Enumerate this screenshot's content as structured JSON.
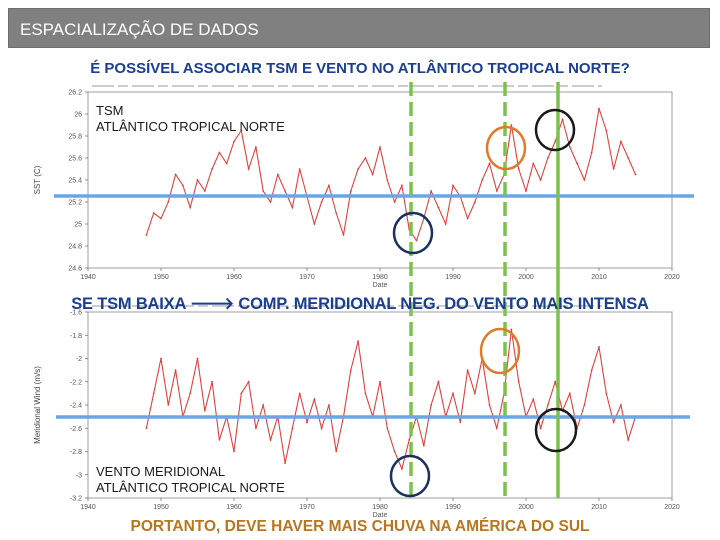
{
  "header": {
    "title": "ESPACIALIZAÇÃO DE DADOS"
  },
  "question": "É POSSÍVEL ASSOCIAR TSM E VENTO NO ATLÂNTICO TROPICAL NORTE?",
  "middle_statement": "SE TSM BAIXA 🡒 COMP. MERIDIONAL NEG. DO VENTO MAIS INTENSA",
  "conclusion": "PORTANTO, DEVE HAVER MAIS CHUVA NA AMÉRICA DO SUL",
  "colors": {
    "header": "#808080",
    "blue_text": "#1a3f8f",
    "orange_text": "#b8761e",
    "series": "#e0413a",
    "h_line": "#6aa5e8",
    "v_line": "#7cc24a",
    "circle_orange": "#e07a2a",
    "circle_dark": "#1a1a1a",
    "circle_navy": "#1a3060"
  },
  "chart_data": [
    {
      "type": "line",
      "panel_label": [
        "TSM",
        "ATLÂNTICO TROPICAL NORTE"
      ],
      "xlabel": "Date",
      "ylabel": "SST (C)",
      "x_ticks": [
        "1940",
        "1950",
        "1960",
        "1970",
        "1980",
        "1990",
        "2000",
        "2010",
        "2020"
      ],
      "y_ticks": [
        "26.2",
        "26",
        "25.8",
        "25.6",
        "25.4",
        "25.2",
        "25",
        "24.8",
        "24.6"
      ],
      "ylim": [
        24.6,
        26.2
      ],
      "x": [
        1948,
        1949,
        1950,
        1951,
        1952,
        1953,
        1954,
        1955,
        1956,
        1957,
        1958,
        1959,
        1960,
        1961,
        1962,
        1963,
        1964,
        1965,
        1966,
        1967,
        1968,
        1969,
        1970,
        1971,
        1972,
        1973,
        1974,
        1975,
        1976,
        1977,
        1978,
        1979,
        1980,
        1981,
        1982,
        1983,
        1984,
        1985,
        1986,
        1987,
        1988,
        1989,
        1990,
        1991,
        1992,
        1993,
        1994,
        1995,
        1996,
        1997,
        1998,
        1999,
        2000,
        2001,
        2002,
        2003,
        2004,
        2005,
        2006,
        2007,
        2008,
        2009,
        2010,
        2011,
        2012,
        2013,
        2014,
        2015
      ],
      "values": [
        24.9,
        25.1,
        25.05,
        25.2,
        25.45,
        25.35,
        25.15,
        25.4,
        25.3,
        25.5,
        25.65,
        25.55,
        25.75,
        25.85,
        25.5,
        25.7,
        25.3,
        25.2,
        25.45,
        25.3,
        25.15,
        25.5,
        25.25,
        25.0,
        25.2,
        25.35,
        25.1,
        24.9,
        25.3,
        25.5,
        25.6,
        25.45,
        25.7,
        25.4,
        25.2,
        25.35,
        24.95,
        24.85,
        25.05,
        25.3,
        25.15,
        25.0,
        25.35,
        25.25,
        25.05,
        25.2,
        25.4,
        25.55,
        25.3,
        25.45,
        25.9,
        25.5,
        25.3,
        25.55,
        25.4,
        25.6,
        25.75,
        25.95,
        25.7,
        25.55,
        25.4,
        25.65,
        26.05,
        25.85,
        25.5,
        25.75,
        25.6,
        25.45
      ]
    },
    {
      "type": "line",
      "panel_label": [
        "VENTO MERIDIONAL",
        "ATLÂNTICO TROPICAL NORTE"
      ],
      "xlabel": "Date",
      "ylabel": "Meridional Wind (m/s)",
      "x_ticks": [
        "1940",
        "1950",
        "1960",
        "1970",
        "1980",
        "1990",
        "2000",
        "2010",
        "2020"
      ],
      "y_ticks": [
        "-1.6",
        "-1.8",
        "-2",
        "-2.2",
        "-2.4",
        "-2.6",
        "-2.8",
        "-3",
        "-3.2"
      ],
      "ylim": [
        -3.2,
        -1.6
      ],
      "x": [
        1948,
        1949,
        1950,
        1951,
        1952,
        1953,
        1954,
        1955,
        1956,
        1957,
        1958,
        1959,
        1960,
        1961,
        1962,
        1963,
        1964,
        1965,
        1966,
        1967,
        1968,
        1969,
        1970,
        1971,
        1972,
        1973,
        1974,
        1975,
        1976,
        1977,
        1978,
        1979,
        1980,
        1981,
        1982,
        1983,
        1984,
        1985,
        1986,
        1987,
        1988,
        1989,
        1990,
        1991,
        1992,
        1993,
        1994,
        1995,
        1996,
        1997,
        1998,
        1999,
        2000,
        2001,
        2002,
        2003,
        2004,
        2005,
        2006,
        2007,
        2008,
        2009,
        2010,
        2011,
        2012,
        2013,
        2014,
        2015
      ],
      "values": [
        -2.6,
        -2.3,
        -2.0,
        -2.4,
        -2.1,
        -2.5,
        -2.3,
        -2.0,
        -2.45,
        -2.2,
        -2.7,
        -2.5,
        -2.8,
        -2.3,
        -2.2,
        -2.6,
        -2.4,
        -2.7,
        -2.5,
        -2.9,
        -2.6,
        -2.3,
        -2.55,
        -2.35,
        -2.6,
        -2.4,
        -2.8,
        -2.5,
        -2.1,
        -1.85,
        -2.3,
        -2.5,
        -2.2,
        -2.6,
        -2.8,
        -2.95,
        -2.7,
        -2.5,
        -2.75,
        -2.4,
        -2.2,
        -2.5,
        -2.3,
        -2.55,
        -2.1,
        -2.3,
        -2.0,
        -2.4,
        -2.6,
        -2.3,
        -1.75,
        -2.2,
        -2.5,
        -2.35,
        -2.6,
        -2.4,
        -2.2,
        -2.45,
        -2.3,
        -2.6,
        -2.4,
        -2.1,
        -1.9,
        -2.3,
        -2.55,
        -2.4,
        -2.7,
        -2.5
      ]
    }
  ]
}
